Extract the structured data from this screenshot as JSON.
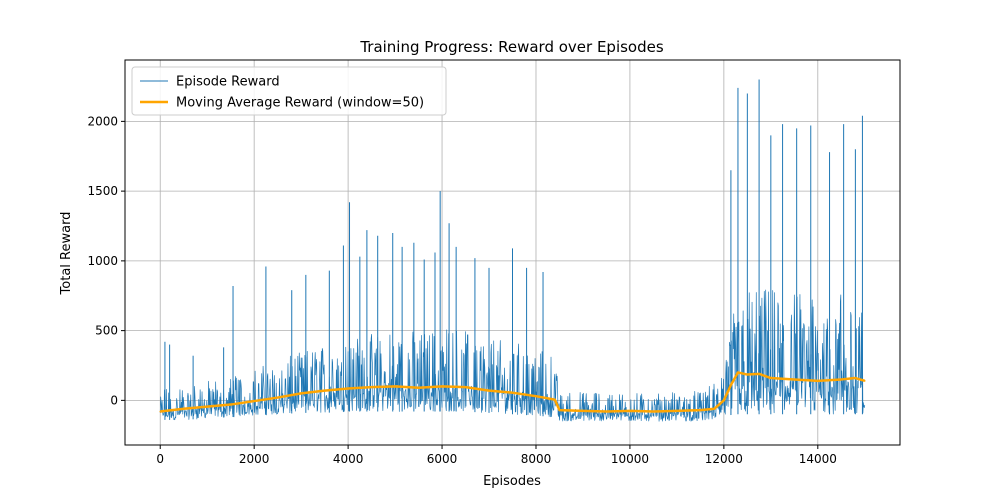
{
  "chart_data": {
    "type": "line",
    "title": "Training Progress: Reward over Episodes",
    "xlabel": "Episodes",
    "ylabel": "Total Reward",
    "xlim": [
      -750,
      15750
    ],
    "ylim": [
      -320,
      2440
    ],
    "x_ticks": [
      0,
      2000,
      4000,
      6000,
      8000,
      10000,
      12000,
      14000
    ],
    "x_tick_labels": [
      "0",
      "2000",
      "4000",
      "6000",
      "8000",
      "10000",
      "12000",
      "14000"
    ],
    "y_ticks": [
      0,
      500,
      1000,
      1500,
      2000
    ],
    "y_tick_labels": [
      "0",
      "500",
      "1000",
      "1500",
      "2000"
    ],
    "grid": true,
    "legend_position": "top-left",
    "x_range": [
      0,
      15000
    ],
    "series": [
      {
        "name": "Episode Reward",
        "color": "#1f77b4",
        "style": "thin line",
        "envelope": {
          "x": [
            0,
            500,
            1000,
            1500,
            2000,
            2500,
            3000,
            3500,
            4000,
            4500,
            5000,
            5500,
            6000,
            6500,
            7000,
            7500,
            8000,
            8400,
            8500,
            9000,
            9500,
            10000,
            10500,
            11000,
            11500,
            11800,
            12000,
            12200,
            12500,
            13000,
            13500,
            14000,
            14500,
            15000
          ],
          "typical_max": [
            80,
            110,
            140,
            180,
            230,
            280,
            350,
            400,
            470,
            480,
            500,
            500,
            520,
            520,
            480,
            440,
            380,
            320,
            60,
            60,
            60,
            60,
            60,
            60,
            70,
            120,
            300,
            650,
            800,
            800,
            780,
            760,
            780,
            760
          ],
          "typical_min": [
            -140,
            -140,
            -130,
            -120,
            -110,
            -100,
            -90,
            -90,
            -80,
            -80,
            -80,
            -80,
            -80,
            -80,
            -90,
            -100,
            -110,
            -120,
            -150,
            -150,
            -150,
            -150,
            -150,
            -150,
            -150,
            -140,
            -120,
            -100,
            -100,
            -100,
            -100,
            -100,
            -100,
            -100
          ]
        },
        "spikes": {
          "x": [
            100,
            200,
            700,
            1350,
            1550,
            2250,
            2800,
            3100,
            3600,
            3900,
            4030,
            4250,
            4400,
            4630,
            4950,
            5150,
            5400,
            5620,
            5850,
            5960,
            6150,
            6300,
            6700,
            7000,
            7500,
            7800,
            8150,
            12150,
            12300,
            12500,
            12750,
            13000,
            13250,
            13550,
            13850,
            14250,
            14550,
            14800,
            14950
          ],
          "y": [
            420,
            400,
            320,
            380,
            820,
            960,
            790,
            900,
            930,
            1110,
            1420,
            1030,
            1220,
            1180,
            1200,
            1100,
            1130,
            1010,
            1060,
            1500,
            1270,
            1100,
            1020,
            950,
            1090,
            950,
            920,
            1650,
            2240,
            2200,
            2300,
            1900,
            1980,
            1950,
            1970,
            1780,
            1980,
            1800,
            2040
          ]
        }
      },
      {
        "name": "Moving Average Reward (window=50)",
        "color": "#ffa500",
        "style": "thick line",
        "x": [
          0,
          500,
          1000,
          1500,
          2000,
          2500,
          3000,
          3500,
          4000,
          4500,
          5000,
          5500,
          6000,
          6500,
          7000,
          7500,
          8000,
          8400,
          8500,
          9000,
          9500,
          10000,
          10500,
          11000,
          11500,
          11800,
          12000,
          12150,
          12300,
          12500,
          12750,
          13000,
          13500,
          14000,
          14500,
          14800,
          15000
        ],
        "y": [
          -80,
          -60,
          -45,
          -30,
          -5,
          20,
          50,
          70,
          85,
          95,
          100,
          90,
          100,
          95,
          70,
          55,
          30,
          5,
          -70,
          -75,
          -80,
          -75,
          -80,
          -75,
          -70,
          -60,
          0,
          110,
          200,
          185,
          190,
          160,
          150,
          140,
          150,
          160,
          140
        ]
      }
    ]
  }
}
